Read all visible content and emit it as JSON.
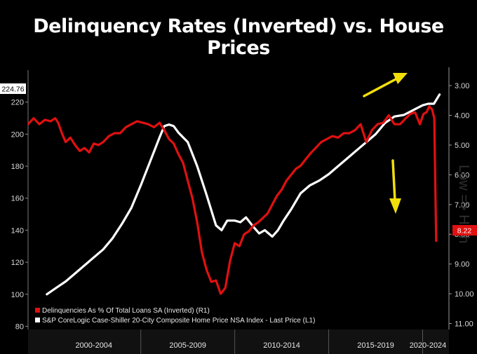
{
  "title": "Delinquency Rates (Inverted) vs. House Prices",
  "colors": {
    "background": "#000000",
    "delinquency_line": "#e01010",
    "home_price_line": "#ffffff",
    "arrow": "#f2df0a",
    "last_price_badge": "#e01010"
  },
  "chart_data": {
    "type": "line",
    "title": "Delinquency Rates (Inverted) vs. House Prices",
    "x_periods": [
      "2000-2004",
      "2005-2009",
      "2010-2014",
      "2015-2019",
      "2020-2024"
    ],
    "x_range": [
      1999.0,
      2021.4
    ],
    "left_axis": {
      "range": [
        78,
        240
      ],
      "ticks": [
        "80",
        "100",
        "120",
        "140",
        "160",
        "180",
        "200",
        "220"
      ],
      "last_value_label": "224.76"
    },
    "right_axis": {
      "inverted": true,
      "range": [
        2.48,
        11.2
      ],
      "ticks": [
        "3.00",
        "4.00",
        "5.00",
        "6.00",
        "7.00",
        "8.00",
        "9.00",
        "10.00",
        "11.00"
      ],
      "last_value_label": "8.22",
      "watermark": "Low => High"
    },
    "legend": {
      "placement": "bottom-left",
      "entries": [
        "Delinquencies As % Of Total Loans SA (Inverted) (R1)",
        "S&P CoreLogic Case-Shiller 20-City Composite Home Price NSA Index - Last Price (L1)"
      ]
    },
    "series": [
      {
        "name": "Delinquencies As % Of Total Loans SA (Inverted) (R1)",
        "axis": "right",
        "x": [
          1999.0,
          1999.3,
          1999.6,
          1999.9,
          2000.2,
          2000.45,
          2000.6,
          2000.8,
          2001.0,
          2001.25,
          2001.5,
          2001.75,
          2002.0,
          2002.25,
          2002.5,
          2002.75,
          2003.0,
          2003.3,
          2003.6,
          2003.9,
          2004.2,
          2004.5,
          2004.8,
          2005.1,
          2005.4,
          2005.7,
          2006.0,
          2006.25,
          2006.5,
          2006.75,
          2007.0,
          2007.25,
          2007.5,
          2007.75,
          2008.0,
          2008.25,
          2008.5,
          2008.75,
          2009.0,
          2009.25,
          2009.5,
          2009.75,
          2010.0,
          2010.25,
          2010.5,
          2010.75,
          2011.0,
          2011.25,
          2011.5,
          2011.75,
          2012.0,
          2012.25,
          2012.5,
          2012.75,
          2013.0,
          2013.25,
          2013.5,
          2013.75,
          2014.0,
          2014.3,
          2014.6,
          2014.9,
          2015.2,
          2015.5,
          2015.8,
          2016.1,
          2016.4,
          2016.7,
          2017.0,
          2017.3,
          2017.6,
          2017.9,
          2018.2,
          2018.5,
          2018.8,
          2019.1,
          2019.35,
          2019.6,
          2019.85,
          2020.05,
          2020.2,
          2020.35,
          2020.5,
          2020.62,
          2020.72
        ],
        "values": [
          4.3,
          4.1,
          4.3,
          4.15,
          4.2,
          4.1,
          4.25,
          4.6,
          4.9,
          4.75,
          5.0,
          5.2,
          5.1,
          5.25,
          4.95,
          5.0,
          4.9,
          4.7,
          4.6,
          4.6,
          4.4,
          4.3,
          4.2,
          4.25,
          4.3,
          4.4,
          4.25,
          4.5,
          4.8,
          4.95,
          5.3,
          5.6,
          6.2,
          6.8,
          7.6,
          8.6,
          9.2,
          9.6,
          9.55,
          10.0,
          9.8,
          8.9,
          8.3,
          8.4,
          8.0,
          7.9,
          7.7,
          7.6,
          7.45,
          7.3,
          7.0,
          6.7,
          6.5,
          6.2,
          6.0,
          5.8,
          5.7,
          5.5,
          5.3,
          5.1,
          4.9,
          4.8,
          4.7,
          4.75,
          4.6,
          4.6,
          4.5,
          4.3,
          4.9,
          4.5,
          4.3,
          4.25,
          4.0,
          4.3,
          4.3,
          4.1,
          3.95,
          3.9,
          4.3,
          3.95,
          3.9,
          3.7,
          3.8,
          4.1,
          8.22
        ]
      },
      {
        "name": "S&P CoreLogic Case-Shiller 20-City Composite Home Price NSA Index - Last Price (L1)",
        "axis": "left",
        "x": [
          2000.0,
          2000.5,
          2001.0,
          2001.5,
          2002.0,
          2002.5,
          2003.0,
          2003.5,
          2004.0,
          2004.5,
          2005.0,
          2005.5,
          2006.0,
          2006.25,
          2006.5,
          2006.75,
          2007.0,
          2007.5,
          2008.0,
          2008.5,
          2009.0,
          2009.3,
          2009.6,
          2010.0,
          2010.3,
          2010.6,
          2011.0,
          2011.3,
          2011.6,
          2012.0,
          2012.3,
          2012.6,
          2013.0,
          2013.5,
          2014.0,
          2014.5,
          2015.0,
          2015.5,
          2016.0,
          2016.5,
          2017.0,
          2017.5,
          2018.0,
          2018.5,
          2019.0,
          2019.5,
          2020.0,
          2020.3,
          2020.6,
          2020.9
        ],
        "values": [
          100,
          104,
          108,
          113,
          118,
          123,
          128,
          135,
          144,
          154,
          168,
          183,
          198,
          205,
          206,
          205,
          201,
          195,
          180,
          162,
          143,
          140,
          146,
          146,
          145,
          148,
          142,
          138,
          140,
          136,
          140,
          146,
          153,
          163,
          168,
          171,
          175,
          180,
          185,
          190,
          195,
          200,
          207,
          211,
          212,
          215,
          218,
          219,
          219,
          224.76
        ]
      }
    ]
  }
}
